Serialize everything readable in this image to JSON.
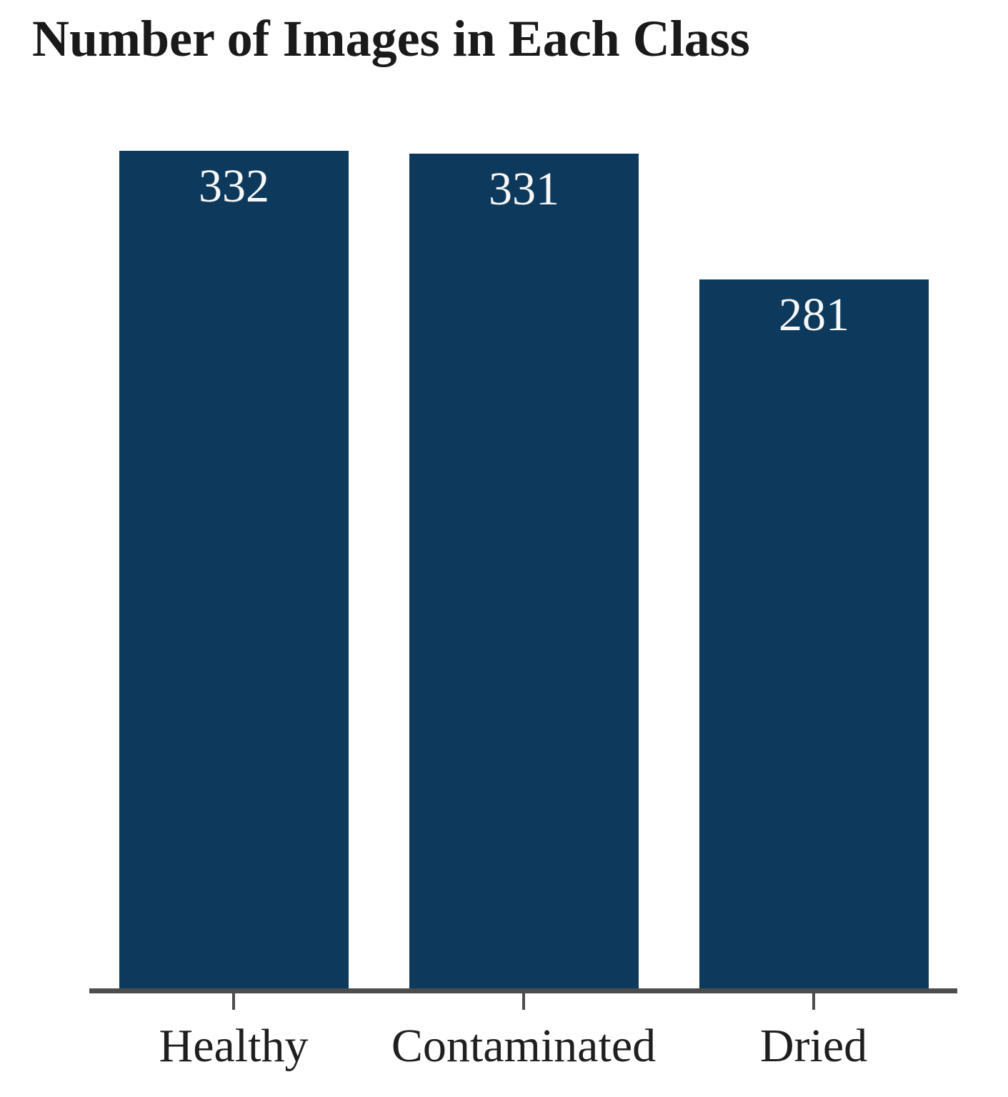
{
  "page": {
    "background_color": "#ffffff"
  },
  "chart_data": {
    "type": "bar",
    "title": "Number of Images in Each Class",
    "categories": [
      "Healthy",
      "Contaminated",
      "Dried"
    ],
    "values": [
      332,
      331,
      281
    ],
    "value_labels": [
      "332",
      "331",
      "281"
    ],
    "value_labels_position": "inside-top",
    "xlabel": "",
    "ylabel": "",
    "ylim": [
      0,
      346
    ],
    "grid": false,
    "legend": false,
    "bar_color": "#0d3a5c",
    "value_label_color": "#f7f7f7",
    "axis_color": "#4d4d4d",
    "title_color": "#1a1a1a",
    "category_label_color": "#1f1f1f"
  }
}
